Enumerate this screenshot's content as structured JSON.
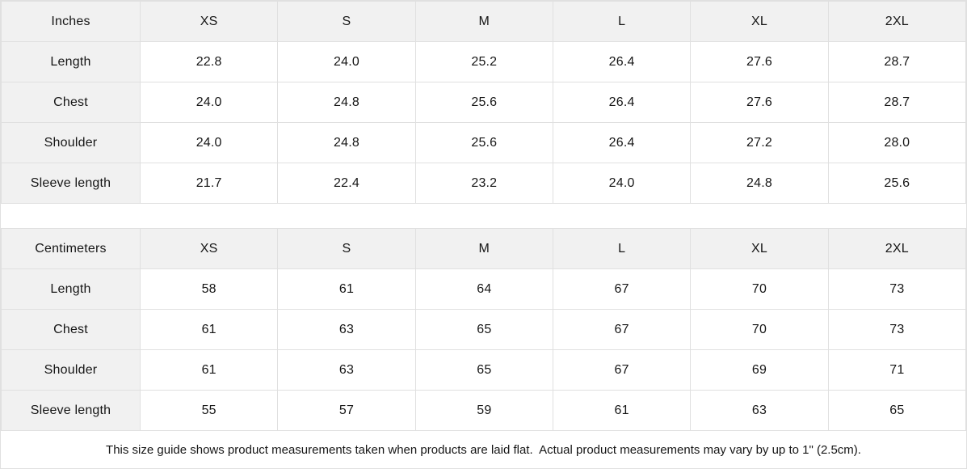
{
  "inches": {
    "unit_label": "Inches",
    "sizes": [
      "XS",
      "S",
      "M",
      "L",
      "XL",
      "2XL"
    ],
    "rows": [
      {
        "label": "Length",
        "values": [
          "22.8",
          "24.0",
          "25.2",
          "26.4",
          "27.6",
          "28.7"
        ]
      },
      {
        "label": "Chest",
        "values": [
          "24.0",
          "24.8",
          "25.6",
          "26.4",
          "27.6",
          "28.7"
        ]
      },
      {
        "label": "Shoulder",
        "values": [
          "24.0",
          "24.8",
          "25.6",
          "26.4",
          "27.2",
          "28.0"
        ]
      },
      {
        "label": "Sleeve length",
        "values": [
          "21.7",
          "22.4",
          "23.2",
          "24.0",
          "24.8",
          "25.6"
        ]
      }
    ]
  },
  "centimeters": {
    "unit_label": "Centimeters",
    "sizes": [
      "XS",
      "S",
      "M",
      "L",
      "XL",
      "2XL"
    ],
    "rows": [
      {
        "label": "Length",
        "values": [
          "58",
          "61",
          "64",
          "67",
          "70",
          "73"
        ]
      },
      {
        "label": "Chest",
        "values": [
          "61",
          "63",
          "65",
          "67",
          "70",
          "73"
        ]
      },
      {
        "label": "Shoulder",
        "values": [
          "61",
          "63",
          "65",
          "67",
          "69",
          "71"
        ]
      },
      {
        "label": "Sleeve length",
        "values": [
          "55",
          "57",
          "59",
          "61",
          "63",
          "65"
        ]
      }
    ]
  },
  "footer": {
    "note": "This size guide shows product measurements taken when products are laid flat.  Actual product measurements may vary by up to 1\" (2.5cm)."
  },
  "colors": {
    "header_bg": "#f1f1f1",
    "border": "#e0e0e0",
    "text": "#161616"
  }
}
